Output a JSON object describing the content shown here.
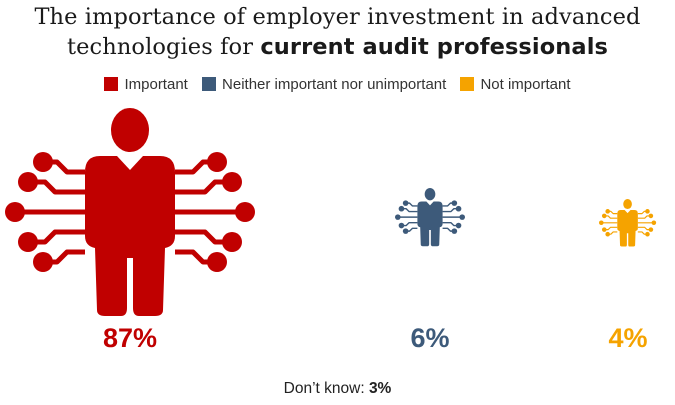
{
  "chart_data": {
    "type": "pictograph",
    "title_line1": "The importance of employer investment in advanced",
    "title_line2_prefix": "technologies for ",
    "title_line2_bold": "current audit professionals",
    "legend": [
      {
        "label": "Important",
        "color": "#c00000"
      },
      {
        "label": "Neither important nor unimportant",
        "color": "#3d5a7a"
      },
      {
        "label": "Not important",
        "color": "#f5a300"
      }
    ],
    "categories": [
      "Important",
      "Neither important nor unimportant",
      "Not important"
    ],
    "values": [
      87,
      6,
      4
    ],
    "value_labels": [
      "87%",
      "6%",
      "4%"
    ],
    "footnote_label": "Don’t know: ",
    "footnote_value": "3%"
  }
}
